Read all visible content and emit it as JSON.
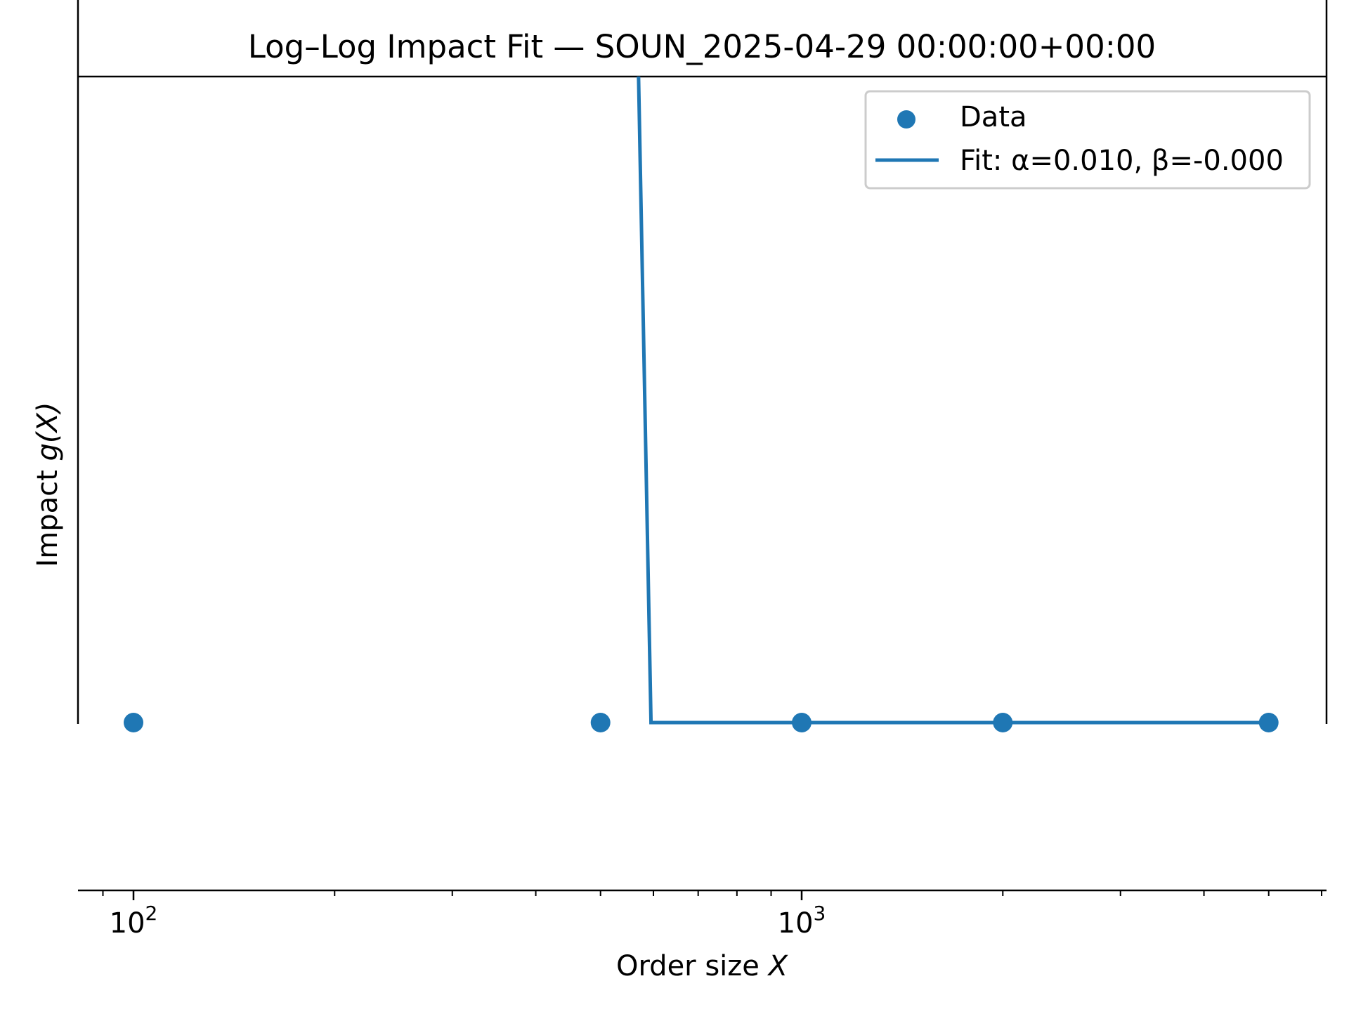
{
  "chart_data": {
    "type": "scatter",
    "title": "Log–Log Impact Fit — SOUN_2025-04-29 00:00:00+00:00",
    "xlabel": "Order size",
    "xlabel_symbol": "X",
    "ylabel": "Impact",
    "ylabel_symbol": "g(X)",
    "x_scale": "log",
    "xlim": [
      80,
      6300
    ],
    "x_ticks": [
      {
        "value": 100,
        "base": "10",
        "exp": "2"
      },
      {
        "value": 1000,
        "base": "10",
        "exp": "3"
      }
    ],
    "x_minor_ticks": [
      90,
      200,
      300,
      400,
      500,
      600,
      700,
      800,
      900,
      2000,
      3000,
      4000,
      5000,
      6000
    ],
    "y_ticks": [],
    "grid": false,
    "legend_position": "upper right",
    "series": [
      {
        "name": "Data",
        "kind": "scatter",
        "color": "#1f77b4",
        "points": [
          {
            "x": 100,
            "y": 0.01
          },
          {
            "x": 500,
            "y": 0.01
          },
          {
            "x": 1000,
            "y": 0.01
          },
          {
            "x": 2000,
            "y": 0.01
          },
          {
            "x": 5000,
            "y": 0.01
          }
        ]
      },
      {
        "name": "Fit: α=0.010, β=-0.000",
        "kind": "line",
        "color": "#1f77b4",
        "alpha": 0.01,
        "beta": -0.0,
        "points": [
          {
            "x": 570,
            "y": "above plot range"
          },
          {
            "x": 595,
            "y": 0.01
          },
          {
            "x": 5000,
            "y": 0.01
          }
        ]
      }
    ]
  }
}
